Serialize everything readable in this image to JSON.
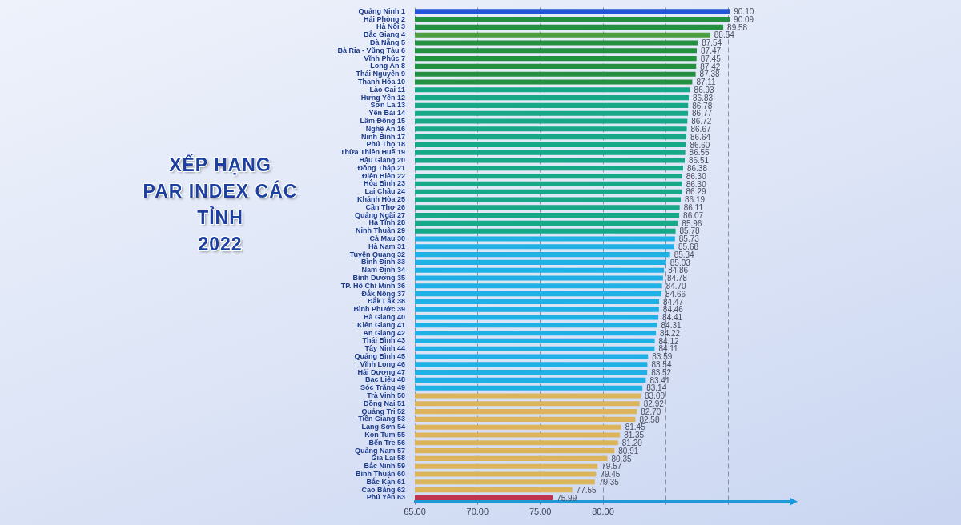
{
  "chart_data": {
    "type": "bar",
    "orientation": "horizontal",
    "title": "XẾP HẠNG\nPAR INDEX CÁC\nTỈNH\n2022",
    "categories": [
      "Quảng Ninh 1",
      "Hải Phòng 2",
      "Hà Nội 3",
      "Bắc Giang 4",
      "Đà Nẵng 5",
      "Bà Rịa - Vũng Tàu 6",
      "Vĩnh Phúc 7",
      "Long An 8",
      "Thái Nguyên 9",
      "Thanh Hóa 10",
      "Lào Cai 11",
      "Hưng Yên 12",
      "Sơn La 13",
      "Yên Bái 14",
      "Lâm Đồng 15",
      "Nghệ An 16",
      "Ninh Bình 17",
      "Phú Thọ 18",
      "Thừa Thiên Huế 19",
      "Hậu Giang 20",
      "Đồng Tháp 21",
      "Điện Biên 22",
      "Hòa Bình 23",
      "Lai Châu 24",
      "Khánh Hòa 25",
      "Cần Thơ 26",
      "Quảng Ngãi 27",
      "Hà Tĩnh 28",
      "Ninh Thuận 29",
      "Cà Mau 30",
      "Hà Nam 31",
      "Tuyên Quang 32",
      "Bình Định 33",
      "Nam Định 34",
      "Bình Dương 35",
      "TP. Hồ Chí Minh 36",
      "Đắk Nông 37",
      "Đắk Lắk 38",
      "Bình Phước 39",
      "Hà Giang 40",
      "Kiên Giang 41",
      "An Giang 42",
      "Thái Bình 43",
      "Tây Ninh 44",
      "Quảng Bình 45",
      "Vĩnh Long 46",
      "Hải Dương 47",
      "Bạc Liêu 48",
      "Sóc Trăng 49",
      "Trà Vinh 50",
      "Đồng Nai 51",
      "Quảng Trị 52",
      "Tiền Giang 53",
      "Lạng Sơn 54",
      "Kon Tum 55",
      "Bến Tre 56",
      "Quảng Nam 57",
      "Gia Lai 58",
      "Bắc Ninh 59",
      "Bình Thuận 60",
      "Bắc Kạn 61",
      "Cao Bằng 62",
      "Phú Yên 63"
    ],
    "values": [
      90.1,
      90.09,
      89.58,
      88.54,
      87.54,
      87.47,
      87.45,
      87.42,
      87.38,
      87.11,
      86.93,
      86.83,
      86.78,
      86.77,
      86.72,
      86.67,
      86.64,
      86.6,
      86.55,
      86.51,
      86.38,
      86.3,
      86.3,
      86.29,
      86.19,
      86.11,
      86.07,
      85.96,
      85.78,
      85.73,
      85.68,
      85.34,
      85.03,
      84.86,
      84.78,
      84.7,
      84.66,
      84.47,
      84.46,
      84.41,
      84.31,
      84.22,
      84.12,
      84.11,
      83.59,
      83.54,
      83.52,
      83.41,
      83.14,
      83.0,
      82.92,
      82.7,
      82.58,
      81.45,
      81.35,
      81.2,
      80.91,
      80.35,
      79.57,
      79.45,
      79.35,
      77.55,
      75.99
    ],
    "value_labels": [
      "90.10",
      "90.09",
      "89.58",
      "88.54",
      "87.54",
      "87.47",
      "87.45",
      "87.42",
      "87.38",
      "87.11",
      "86.93",
      "86.83",
      "86.78",
      "86.77",
      "86.72",
      "86.67",
      "86.64",
      "86.60",
      "86.55",
      "86.51",
      "86.38",
      "86.30",
      "86.30",
      "86.29",
      "86.19",
      "86.11",
      "86.07",
      "85.96",
      "85.78",
      "85.73",
      "85.68",
      "85.34",
      "85.03",
      "84.86",
      "84.78",
      "84.70",
      "84.66",
      "84.47",
      "84.46",
      "84.41",
      "84.31",
      "84.22",
      "84.12",
      "84.11",
      "83.59",
      "83.54",
      "83.52",
      "83.41",
      "83.14",
      "83.00",
      "82.92",
      "82.70",
      "82.58",
      "81.45",
      "81.35",
      "81.20",
      "80.91",
      "80.35",
      "79.57",
      "79.45",
      "79.35",
      "77.55",
      "75.99"
    ],
    "colors": [
      "#2255d8",
      "#23913f",
      "#23913f",
      "#4a9e3f",
      "#23913f",
      "#23913f",
      "#23913f",
      "#23913f",
      "#23913f",
      "#23913f",
      "#16a887",
      "#16a887",
      "#16a887",
      "#16a887",
      "#16a887",
      "#16a887",
      "#16a887",
      "#16a887",
      "#16a887",
      "#16a887",
      "#16a887",
      "#16a887",
      "#16a887",
      "#16a887",
      "#16a887",
      "#16a887",
      "#16a887",
      "#16a887",
      "#16a887",
      "#1fb0e6",
      "#1fb0e6",
      "#1fb0e6",
      "#1fb0e6",
      "#1fb0e6",
      "#1fb0e6",
      "#1fb0e6",
      "#1fb0e6",
      "#1fb0e6",
      "#1fb0e6",
      "#1fb0e6",
      "#1fb0e6",
      "#1fb0e6",
      "#1fb0e6",
      "#1fb0e6",
      "#1fb0e6",
      "#1fb0e6",
      "#1fb0e6",
      "#1fb0e6",
      "#1fb0e6",
      "#dcb45c",
      "#dcb45c",
      "#dcb45c",
      "#dcb45c",
      "#dcb45c",
      "#dcb45c",
      "#dcb45c",
      "#dcb45c",
      "#dcb45c",
      "#dcb45c",
      "#dcb45c",
      "#dcb45c",
      "#dcb45c",
      "#c0344e"
    ],
    "xlim": [
      65,
      95
    ],
    "xticks": [
      {
        "value": 65,
        "label": "65.00"
      },
      {
        "value": 70,
        "label": "70.00"
      },
      {
        "value": 75,
        "label": "75.00"
      },
      {
        "value": 80,
        "label": "80.00"
      },
      {
        "value": 85,
        "label": null
      },
      {
        "value": 90,
        "label": null
      }
    ],
    "grid": "x"
  }
}
